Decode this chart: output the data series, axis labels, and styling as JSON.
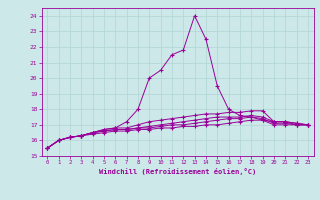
{
  "xlabel": "Windchill (Refroidissement éolien,°C)",
  "background_color": "#cce8e8",
  "grid_color": "#b0d4d4",
  "line_color": "#990099",
  "xlim": [
    -0.5,
    23.5
  ],
  "ylim": [
    15,
    24.5
  ],
  "yticks": [
    15,
    16,
    17,
    18,
    19,
    20,
    21,
    22,
    23,
    24
  ],
  "xticks": [
    0,
    1,
    2,
    3,
    4,
    5,
    6,
    7,
    8,
    9,
    10,
    11,
    12,
    13,
    14,
    15,
    16,
    17,
    18,
    19,
    20,
    21,
    22,
    23
  ],
  "series": [
    [
      15.5,
      16.0,
      16.2,
      16.3,
      16.5,
      16.7,
      16.8,
      17.2,
      18.0,
      20.0,
      20.5,
      21.5,
      21.8,
      24.0,
      22.5,
      19.5,
      18.0,
      17.6,
      17.5,
      17.3,
      17.2,
      17.2,
      17.0,
      17.0
    ],
    [
      15.5,
      16.0,
      16.2,
      16.3,
      16.5,
      16.7,
      16.8,
      16.8,
      17.0,
      17.2,
      17.3,
      17.4,
      17.5,
      17.6,
      17.7,
      17.7,
      17.8,
      17.8,
      17.9,
      17.9,
      17.2,
      17.2,
      17.1,
      17.0
    ],
    [
      15.5,
      16.0,
      16.2,
      16.3,
      16.5,
      16.6,
      16.7,
      16.7,
      16.8,
      16.9,
      17.0,
      17.1,
      17.2,
      17.3,
      17.4,
      17.5,
      17.5,
      17.5,
      17.6,
      17.5,
      17.2,
      17.2,
      17.1,
      17.0
    ],
    [
      15.5,
      16.0,
      16.2,
      16.3,
      16.5,
      16.6,
      16.7,
      16.7,
      16.8,
      16.8,
      16.9,
      17.0,
      17.0,
      17.1,
      17.2,
      17.3,
      17.4,
      17.4,
      17.5,
      17.4,
      17.1,
      17.1,
      17.0,
      17.0
    ],
    [
      15.5,
      16.0,
      16.2,
      16.3,
      16.4,
      16.5,
      16.6,
      16.6,
      16.7,
      16.7,
      16.8,
      16.8,
      16.9,
      16.9,
      17.0,
      17.0,
      17.1,
      17.2,
      17.3,
      17.3,
      17.0,
      17.0,
      17.0,
      17.0
    ]
  ]
}
